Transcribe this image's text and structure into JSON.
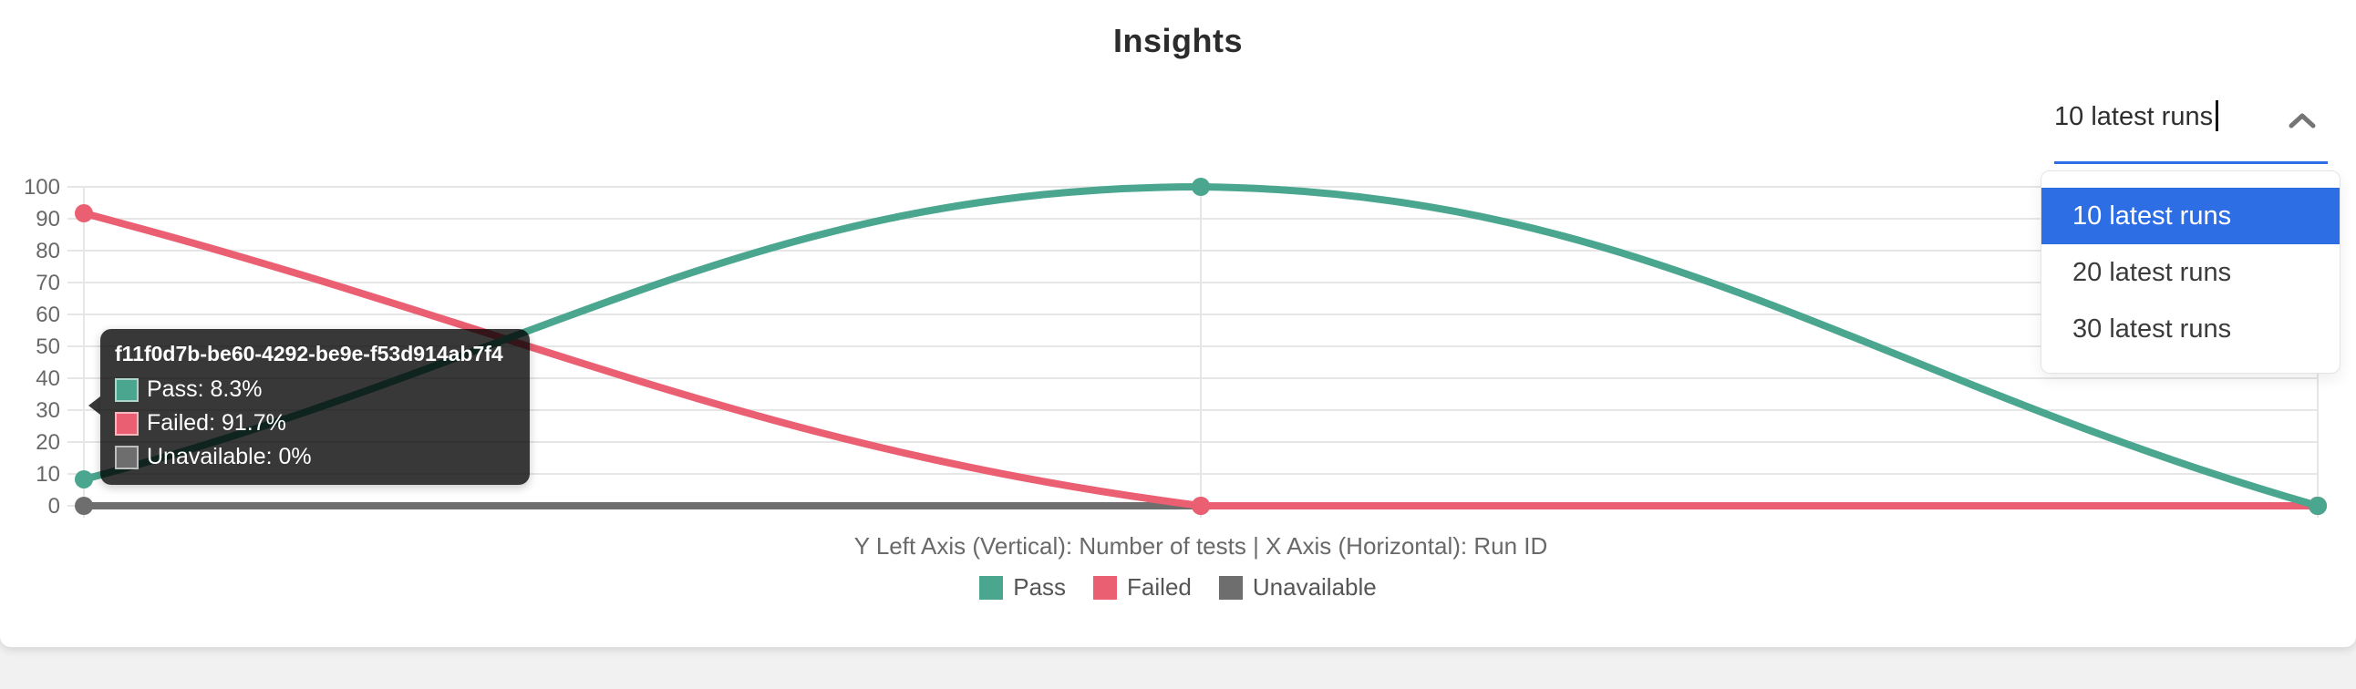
{
  "page": {
    "title": "Insights"
  },
  "dropdown": {
    "value": "10 latest runs",
    "accent_color": "#2e6ee5",
    "selected_index": 0,
    "options": [
      "10 latest runs",
      "20 latest runs",
      "30 latest runs"
    ]
  },
  "tooltip": {
    "title": "f11f0d7b-be60-4292-be9e-f53d914ab7f4",
    "rows": [
      "Pass: 8.3%",
      "Failed: 91.7%",
      "Unavailable: 0%"
    ]
  },
  "chart_data": {
    "type": "line",
    "x_axis_label": "Run ID",
    "y_axis_label": "Number of tests",
    "caption": "Y Left Axis (Vertical): Number of tests  |  X Axis (Horizontal): Run ID",
    "categories": [
      "f11f0d7b-be60-4292-be9e-f53d914ab7f4",
      null,
      null
    ],
    "x_tick_labels_visible": false,
    "series": [
      {
        "name": "Pass",
        "color": "#4aa68f",
        "values": [
          8.3,
          100,
          0
        ]
      },
      {
        "name": "Failed",
        "color": "#ea5f71",
        "values": [
          91.7,
          0,
          0
        ]
      },
      {
        "name": "Unavailable",
        "color": "#6e6e6e",
        "values": [
          0,
          0,
          0
        ]
      }
    ],
    "ylim": [
      0,
      100
    ],
    "yticks": [
      0,
      10,
      20,
      30,
      40,
      50,
      60,
      70,
      80,
      90,
      100
    ],
    "grid": true,
    "legend_position": "bottom",
    "smoothing": "bezier-0.4"
  }
}
